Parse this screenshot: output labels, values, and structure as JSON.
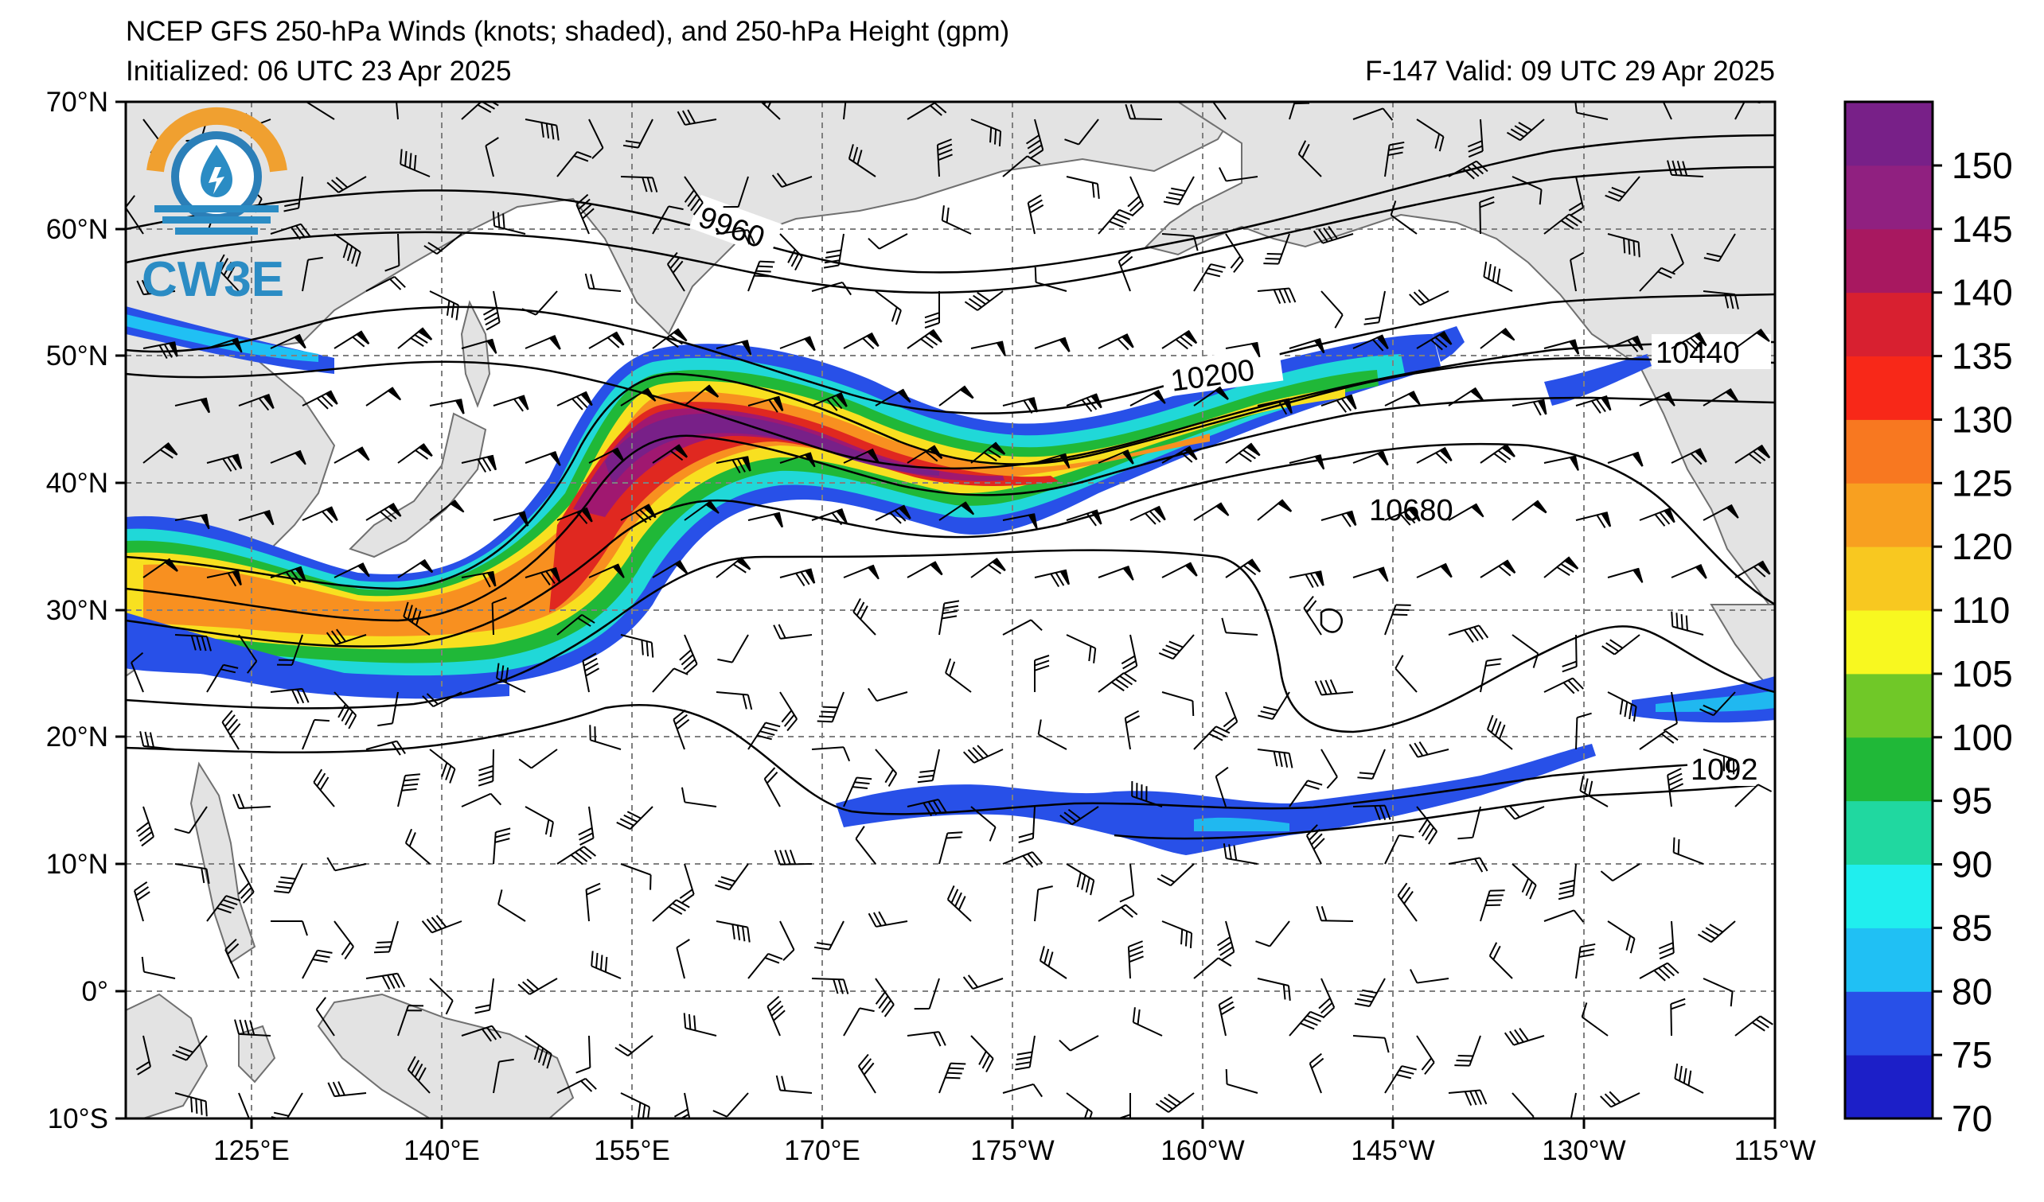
{
  "header": {
    "title": "NCEP GFS 250-hPa Winds (knots; shaded), and 250-hPa Height (gpm)",
    "init": "Initialized: 06 UTC 23 Apr 2025",
    "valid": "F-147  Valid: 09 UTC 29 Apr 2025"
  },
  "logo": {
    "text": "CW3E",
    "colors": {
      "arc": "#f0a030",
      "wave": "#2b8cc4",
      "ring": "#2b7fb8"
    }
  },
  "map": {
    "lon_labels": [
      "125°E",
      "140°E",
      "155°E",
      "170°E",
      "175°W",
      "160°W",
      "145°W",
      "130°W",
      "115°W"
    ],
    "lat_labels": [
      "70°N",
      "60°N",
      "50°N",
      "40°N",
      "30°N",
      "20°N",
      "10°N",
      "0°",
      "10°S"
    ],
    "land_color": "#e3e3e3",
    "coast_color": "#707070",
    "grid_style": "dashed"
  },
  "contour_labels": [
    "9960",
    "10200",
    "10440",
    "10680",
    "1092"
  ],
  "colorbar": {
    "ticks": [
      "150",
      "145",
      "140",
      "135",
      "130",
      "125",
      "120",
      "110",
      "105",
      "100",
      "95",
      "90",
      "85",
      "80",
      "75",
      "70"
    ],
    "colors": [
      "#1c1fc8",
      "#2850e8",
      "#20c0f4",
      "#20eeee",
      "#20d8a0",
      "#20b838",
      "#70c828",
      "#f8f820",
      "#f8c820",
      "#f8a020",
      "#f87820",
      "#f82818",
      "#d82030",
      "#a81860",
      "#902080",
      "#782088"
    ]
  }
}
